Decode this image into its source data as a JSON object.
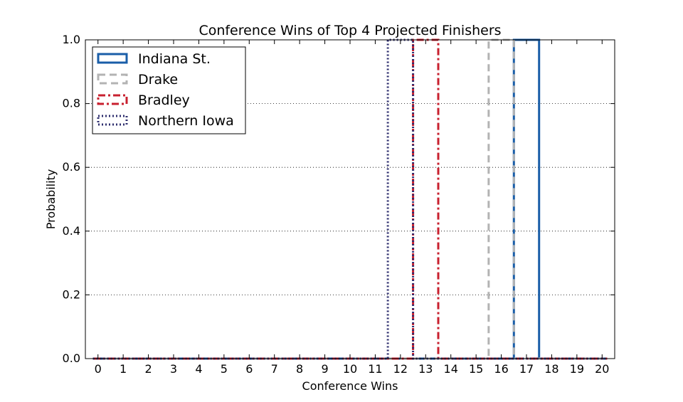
{
  "chart_data": {
    "type": "histogram-step",
    "title": "Conference Wins of Top 4 Projected Finishers",
    "xlabel": "Conference Wins",
    "ylabel": "Probability",
    "xlim": [
      -0.5,
      20.5
    ],
    "ylim": [
      0,
      1.0
    ],
    "x_ticks": [
      0,
      1,
      2,
      3,
      4,
      5,
      6,
      7,
      8,
      9,
      10,
      11,
      12,
      13,
      14,
      15,
      16,
      17,
      18,
      19,
      20
    ],
    "y_ticks": [
      0.0,
      0.2,
      0.4,
      0.6,
      0.8,
      1.0
    ],
    "y_tick_labels": [
      "0.0",
      "0.2",
      "0.4",
      "0.6",
      "0.8",
      "1.0"
    ],
    "grid": "horizontal dotted",
    "legend_position": "top-left",
    "series": [
      {
        "name": "Indiana St.",
        "color": "#1a5ea8",
        "style": "solid",
        "x": [
          17
        ],
        "y": [
          1.0
        ]
      },
      {
        "name": "Drake",
        "color": "#b3b3b3",
        "style": "dashed",
        "x": [
          16
        ],
        "y": [
          1.0
        ]
      },
      {
        "name": "Bradley",
        "color": "#c8202f",
        "style": "dashdot",
        "x": [
          13
        ],
        "y": [
          1.0
        ]
      },
      {
        "name": "Northern Iowa",
        "color": "#2e2e6e",
        "style": "dotted",
        "x": [
          12
        ],
        "y": [
          1.0
        ]
      }
    ]
  }
}
